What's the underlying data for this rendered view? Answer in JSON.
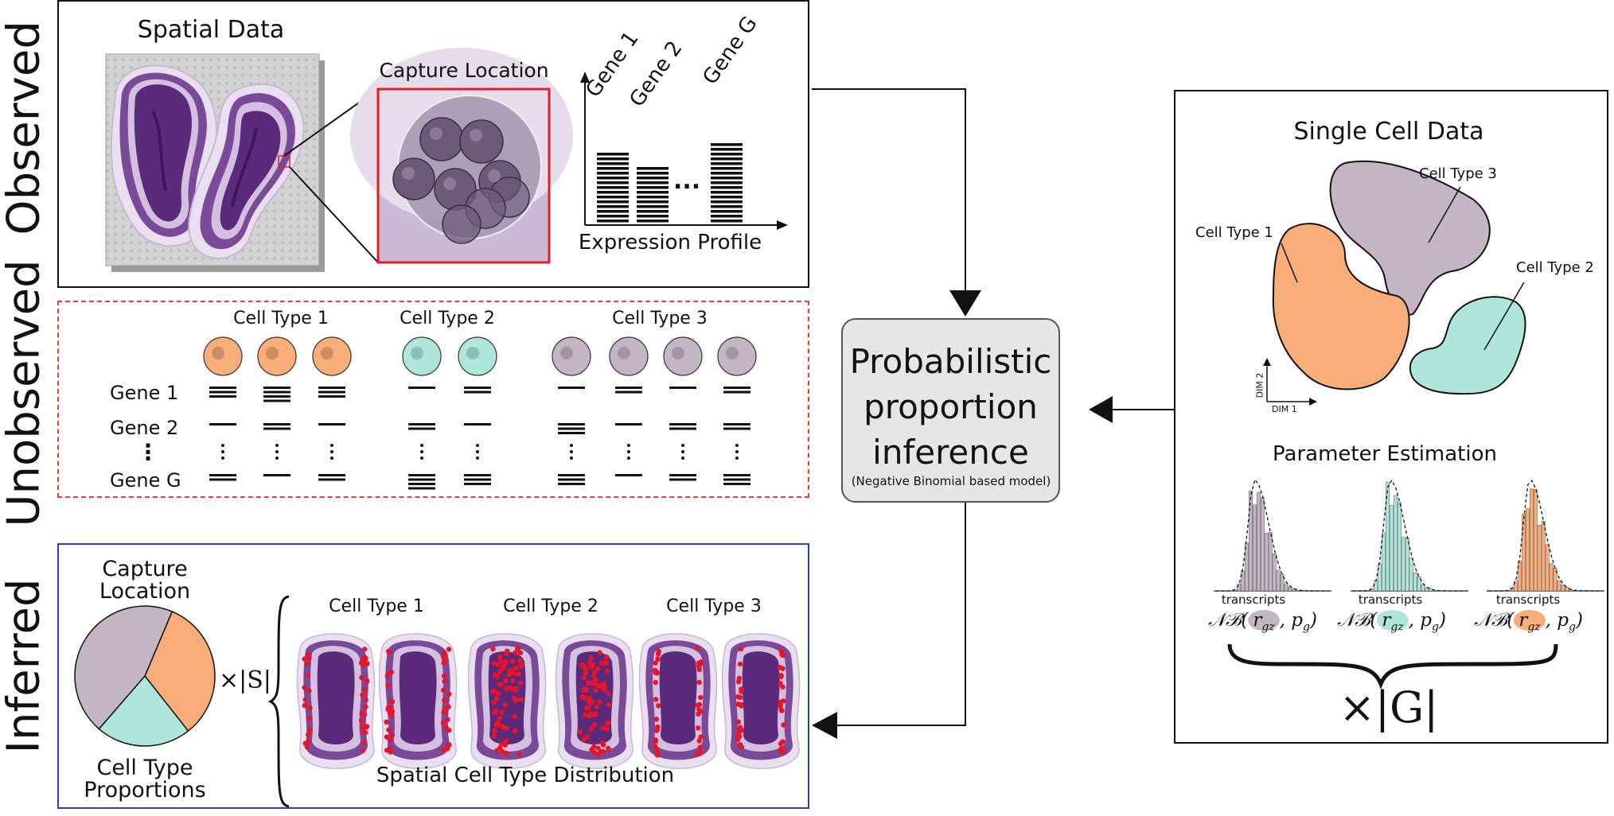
{
  "rows": {
    "observed": "Observed",
    "unobserved": "Unobserved",
    "inferred": "Inferred"
  },
  "observed_panel": {
    "spatial_title": "Spatial Data",
    "capture_title": "Capture Location",
    "genes": [
      "Gene 1",
      "Gene 2",
      "Gene G"
    ],
    "ellipsis": "...",
    "expression_title": "Expression Profile"
  },
  "unobserved_panel": {
    "cell_types": [
      "Cell Type 1",
      "Cell Type 2",
      "Cell Type 3"
    ],
    "gene_rows": [
      "Gene 1",
      "Gene 2",
      "⋮",
      "Gene G"
    ]
  },
  "inferred_panel": {
    "capture_label_1": "Capture",
    "capture_label_2": "Location",
    "proportions_label_1": "Cell Type",
    "proportions_label_2": "Proportions",
    "multiplier": "×|S|",
    "cell_types": [
      "Cell Type 1",
      "Cell Type 2",
      "Cell Type 3"
    ],
    "distribution_title": "Spatial Cell Type Distribution",
    "pie_proportions": [
      0.33,
      0.22,
      0.45
    ]
  },
  "model_box": {
    "line1": "Probabilistic",
    "line2": "proportion",
    "line3": "inference",
    "subtitle": "(Negative Binomial based model)"
  },
  "single_cell_panel": {
    "title": "Single Cell Data",
    "cell_types": [
      "Cell Type 3",
      "Cell Type 1",
      "Cell Type 2"
    ],
    "dim1": "DIM 1",
    "dim2": "DIM 2",
    "param_title": "Parameter Estimation",
    "transcripts": "transcripts",
    "nb_prefix": "𝒩ℬ(",
    "nb_r": "r",
    "nb_sub": "gz",
    "nb_suffix": ", p",
    "nb_sub2": "g",
    "nb_close": ")",
    "multiplier": "×|G|"
  },
  "colors": {
    "orange": "#f9ad78",
    "teal": "#afe6dc",
    "mauve": "#c4b5c4",
    "tissue_dark": "#5b2a7b",
    "tissue_mid": "#8d5aa6",
    "tissue_light": "#d4bfe0",
    "red_box": "#e02020",
    "blue_box": "#2a3bd6",
    "red_dash": "#e83a3a",
    "model_fill": "#e6e6e6"
  }
}
